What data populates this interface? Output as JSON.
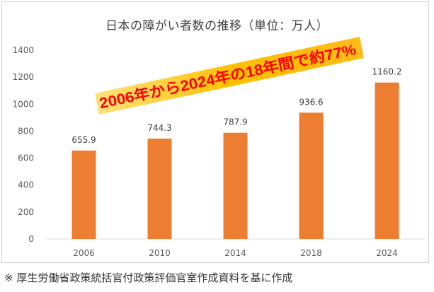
{
  "chart_data": {
    "type": "bar",
    "title": "日本の障がい者数の推移（単位：万人）",
    "categories": [
      "2006",
      "2010",
      "2014",
      "2018",
      "2024"
    ],
    "values": [
      655.9,
      744.3,
      787.9,
      936.6,
      1160.2
    ],
    "ylim": [
      0,
      1400
    ],
    "yticks": [
      0,
      200,
      400,
      600,
      800,
      1000,
      1200,
      1400
    ],
    "xlabel": "",
    "ylabel": "",
    "grid": false,
    "bar_color": "#ED7D31",
    "annotation": {
      "text": "2006年から2024年の18年間で約77%",
      "color": "#FF0000",
      "band_color": "#FFC000"
    }
  },
  "footnote": "※ 厚生労働省政策統括官付政策評価官室作成資料を基に作成"
}
